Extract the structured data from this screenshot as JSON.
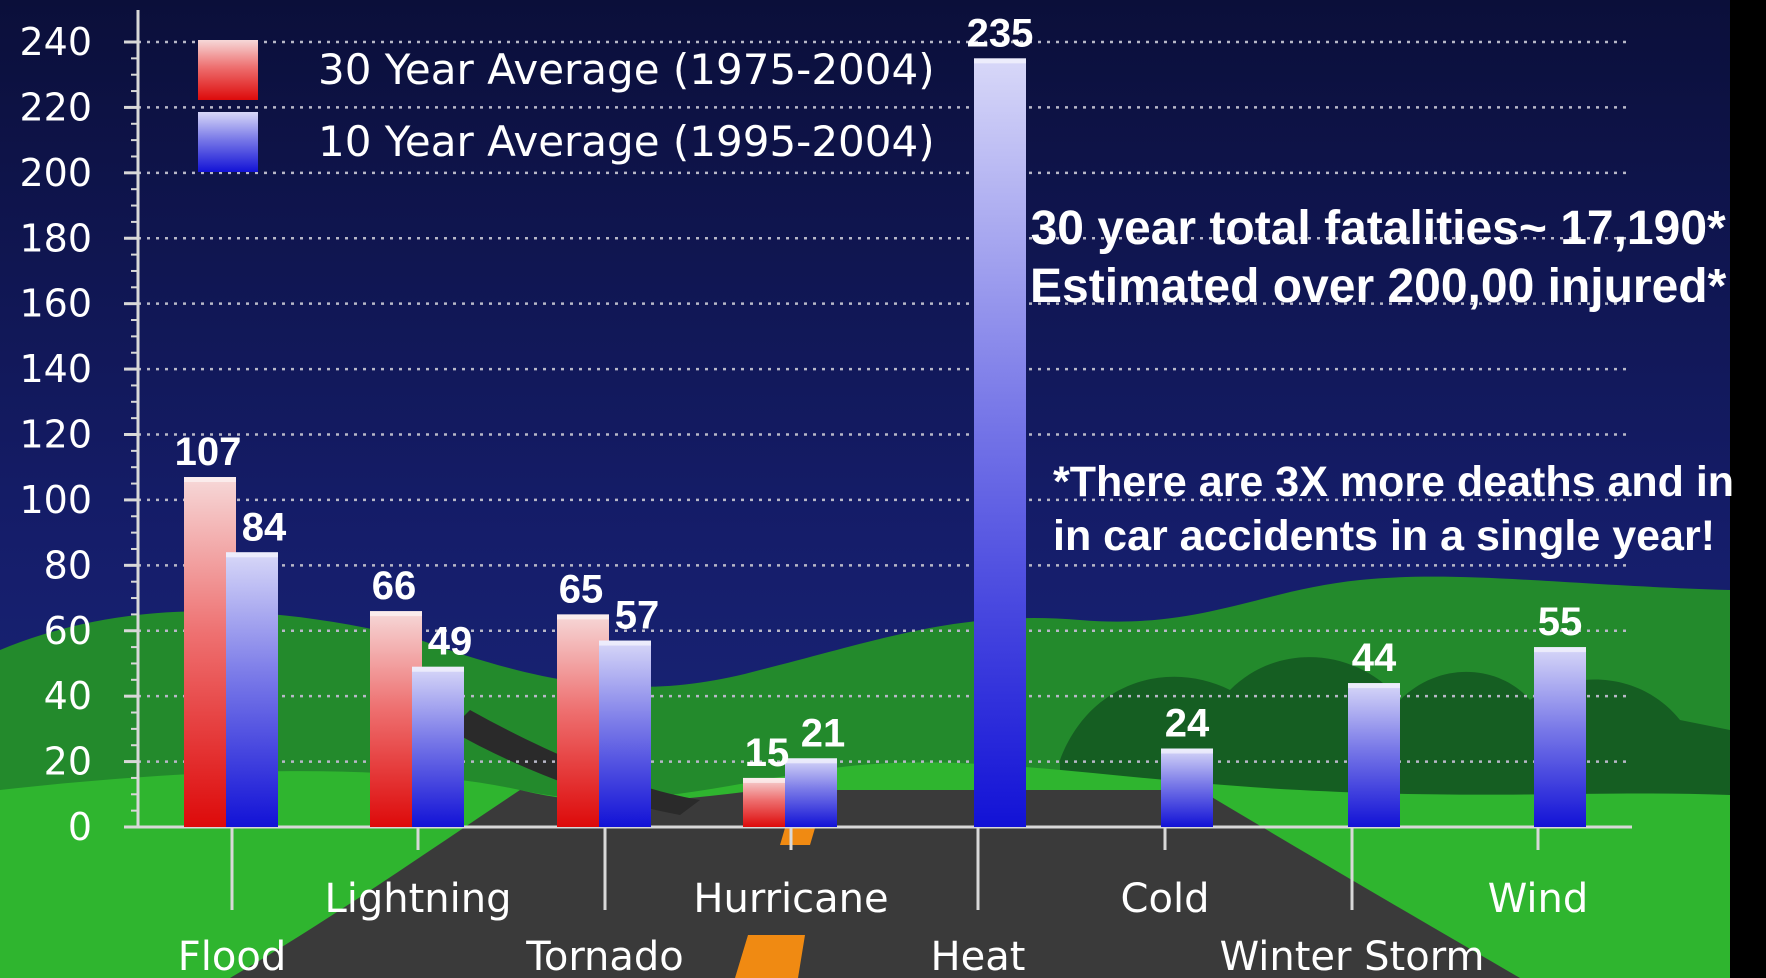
{
  "chart_data": {
    "type": "bar",
    "categories": [
      "Flood",
      "Lightning",
      "Tornado",
      "Hurricane",
      "Heat",
      "Cold",
      "Winter Storm",
      "Wind"
    ],
    "series": [
      {
        "name": "30 Year Average (1975-2004)",
        "values": [
          107,
          66,
          65,
          15,
          null,
          null,
          null,
          null
        ],
        "color": "#e01818"
      },
      {
        "name": "10 Year Average (1995-2004)",
        "values": [
          84,
          49,
          57,
          21,
          235,
          24,
          44,
          55
        ],
        "color": "#2020d8"
      }
    ],
    "ylim": [
      0,
      240
    ],
    "yticks": [
      0,
      20,
      40,
      60,
      80,
      100,
      120,
      140,
      160,
      180,
      200,
      220,
      240
    ],
    "grid": true,
    "legend_position": "top-left",
    "annotations": [
      "30 year total fatalities~ 17,190*",
      "Estimated over 200,00 injured*",
      "*There are 3X more deaths and in",
      "in car accidents in a single year!"
    ]
  }
}
